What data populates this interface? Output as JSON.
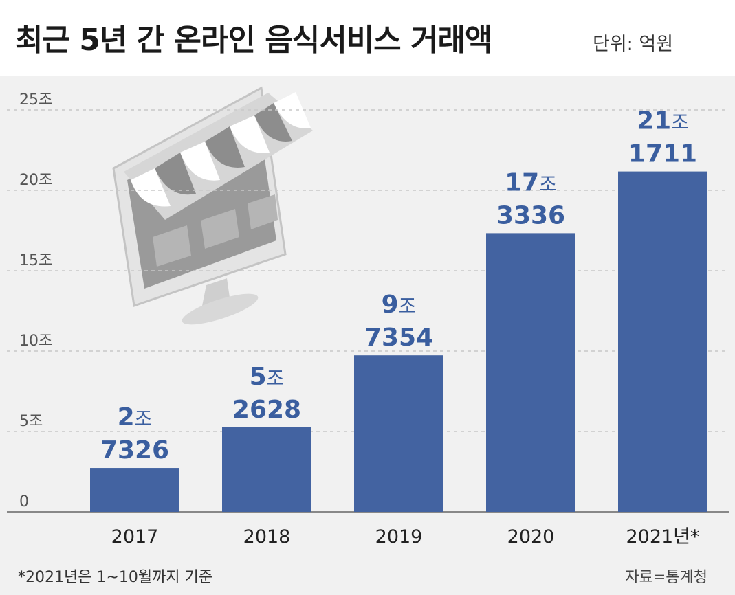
{
  "header": {
    "title": "최근 5년 간 온라인 음식서비스 거래액",
    "unit": "단위: 억원"
  },
  "footer": {
    "note": "*2021년은 1~10월까지 기준",
    "source": "자료=통계청"
  },
  "colors": {
    "bar": "#4363a1",
    "label": "#3a5e9f",
    "grid": "#c8c8c8",
    "axis_text": "#555555",
    "background": "#f1f1f1"
  },
  "illustration": "storefront-monitor-icon",
  "chart_data": {
    "type": "bar",
    "title": "최근 5년 간 온라인 음식서비스 거래액",
    "unit": "억원",
    "categories": [
      "2017",
      "2018",
      "2019",
      "2020",
      "2021년*"
    ],
    "values": [
      27326,
      52628,
      97354,
      173336,
      211711
    ],
    "labels": [
      {
        "big": "2",
        "small": "조",
        "rest": "7326"
      },
      {
        "big": "5",
        "small": "조",
        "rest": "2628"
      },
      {
        "big": "9",
        "small": "조",
        "rest": "7354"
      },
      {
        "big": "17",
        "small": "조",
        "rest": "3336"
      },
      {
        "big": "21",
        "small": "조",
        "rest": "1711"
      }
    ],
    "yticks": [
      {
        "value": 0,
        "label": "0"
      },
      {
        "value": 50000,
        "label": "5조"
      },
      {
        "value": 100000,
        "label": "10조"
      },
      {
        "value": 150000,
        "label": "15조"
      },
      {
        "value": 200000,
        "label": "20조"
      },
      {
        "value": 250000,
        "label": "25조"
      }
    ],
    "ylim": [
      0,
      250000
    ],
    "grid": true
  }
}
